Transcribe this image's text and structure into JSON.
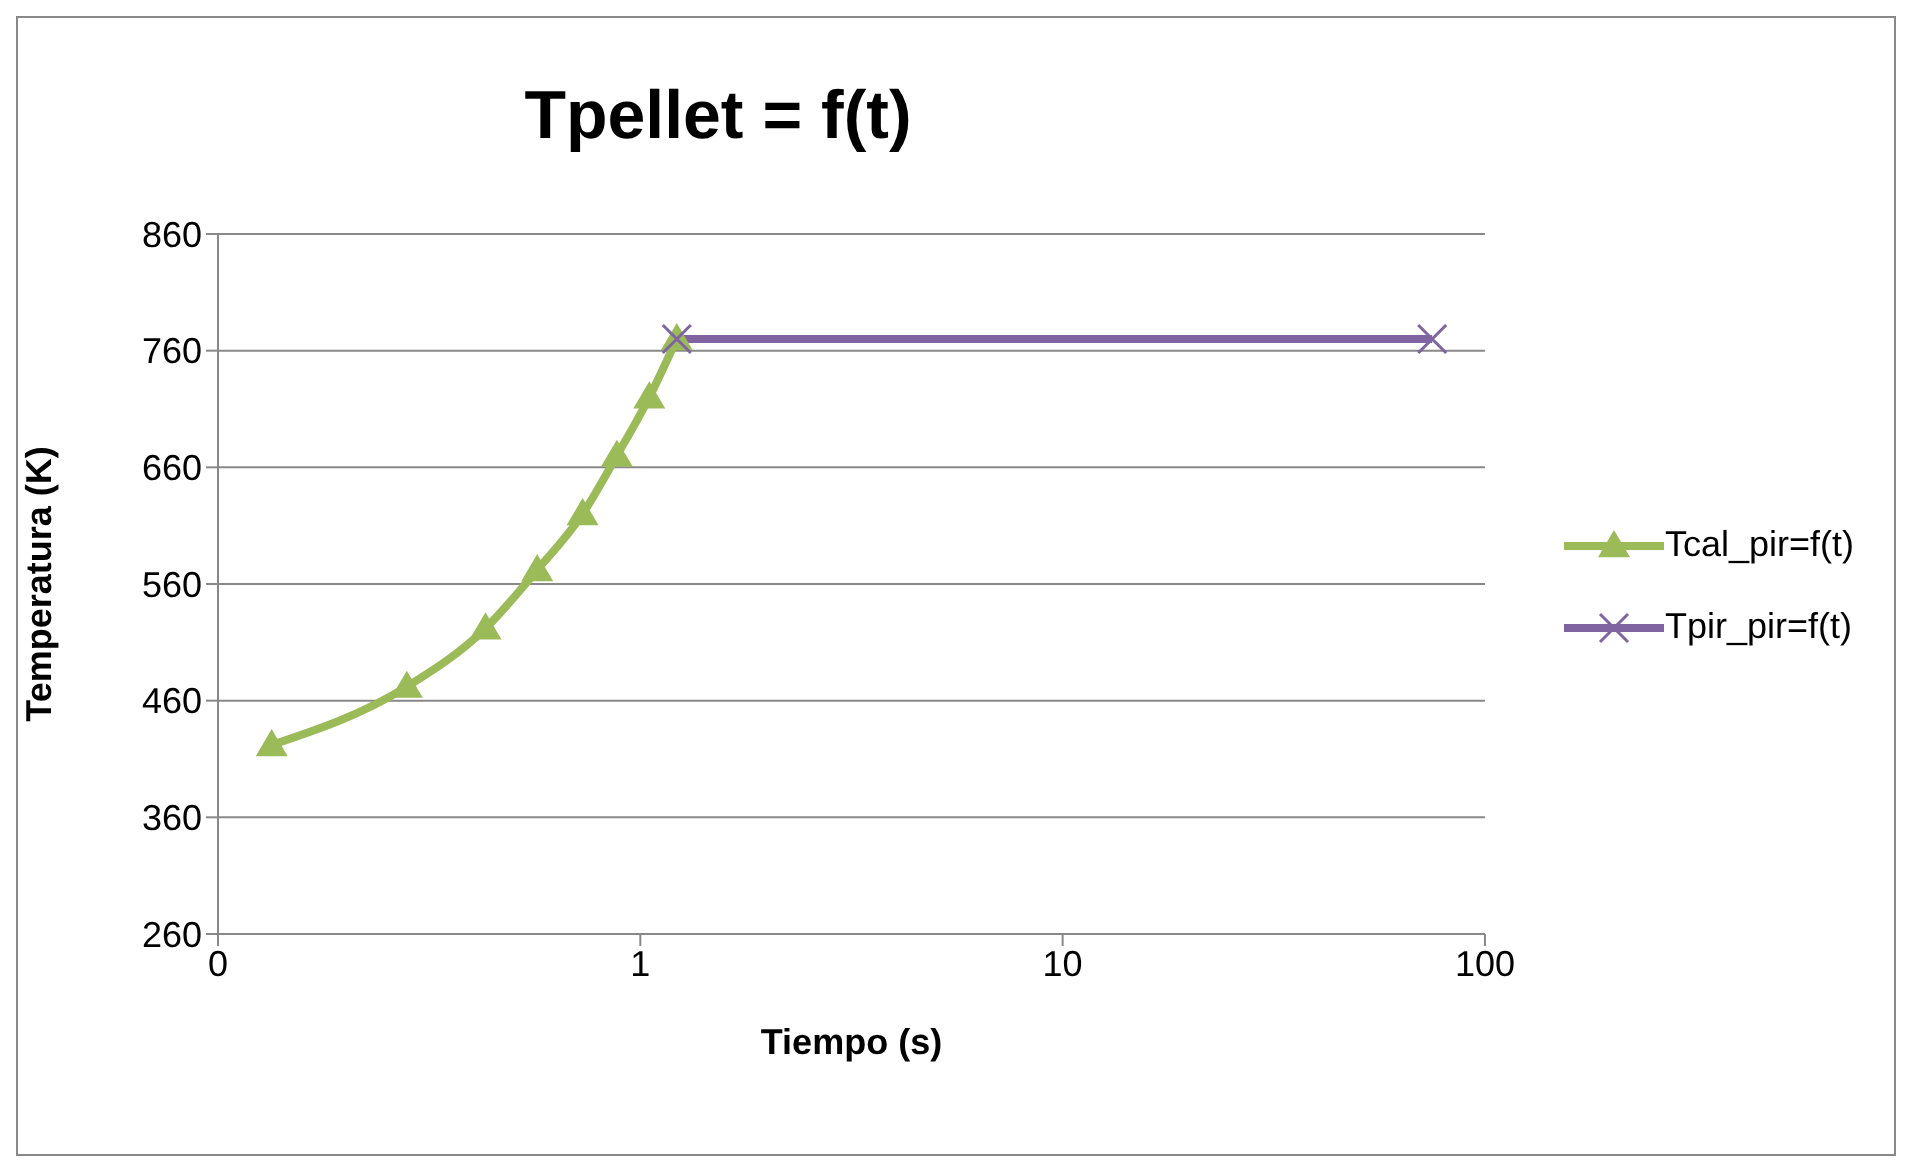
{
  "chart_data": {
    "type": "line",
    "title": "Tpellet = f(t)",
    "xlabel": "Tiempo (s)",
    "ylabel": "Temperatura (K)",
    "log": "x",
    "xlim": [
      0.1,
      100
    ],
    "xticks": [
      {
        "value": 0.1,
        "label": "0"
      },
      1,
      10,
      100
    ],
    "ylim": [
      260,
      860
    ],
    "yticks": [
      260,
      360,
      460,
      560,
      660,
      760,
      860
    ],
    "grid": "y",
    "legend": "right",
    "line_style": "solid",
    "series": [
      {
        "name": "Tcal_pir=f(t)",
        "color": "#9bbb59",
        "marker": "triangle",
        "x": [
          0.134,
          0.28,
          0.43,
          0.57,
          0.73,
          0.88,
          1.05,
          1.22
        ],
        "values": [
          422,
          472,
          522,
          572,
          620,
          670,
          720,
          770
        ]
      },
      {
        "name": "Tpir_pir=f(t)",
        "color": "#8064a2",
        "marker": "cross",
        "x": [
          1.22,
          75
        ],
        "values": [
          770,
          770
        ]
      }
    ]
  }
}
